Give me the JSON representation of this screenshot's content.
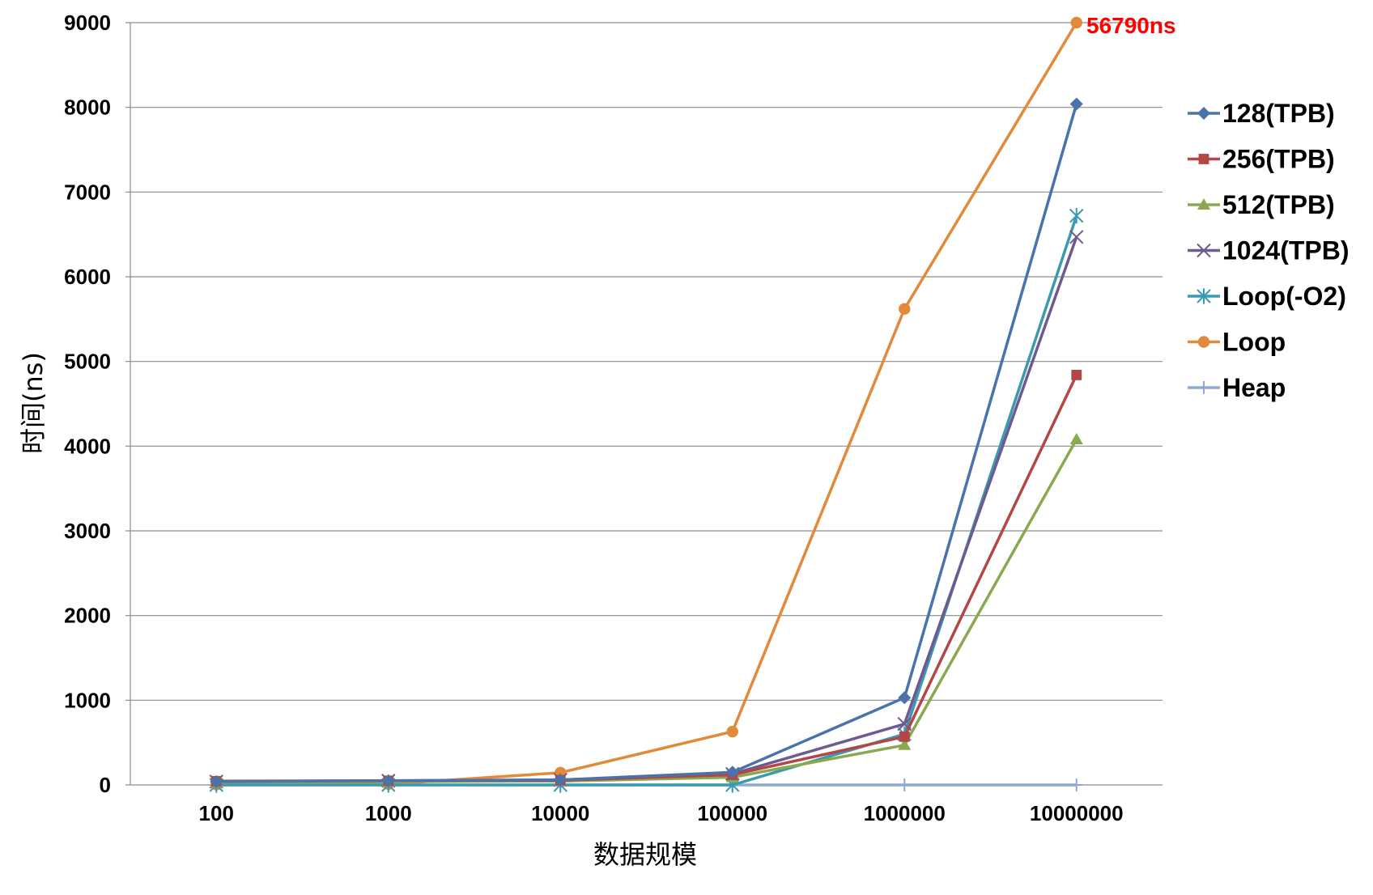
{
  "chart_data": {
    "type": "line",
    "title": "",
    "xlabel": "数据规模",
    "ylabel": "时间(ns)",
    "categories": [
      "100",
      "1000",
      "10000",
      "100000",
      "1000000",
      "10000000"
    ],
    "y_ticks": [
      "0",
      "1000",
      "2000",
      "3000",
      "4000",
      "5000",
      "6000",
      "7000",
      "8000",
      "9000"
    ],
    "ylim": [
      0,
      9000
    ],
    "grid": true,
    "legend_position": "right",
    "annotation": {
      "text": "56790ns",
      "color": "#ff0000"
    },
    "series": [
      {
        "name": "128(TPB)",
        "color": "#4a72ab",
        "marker": "diamond",
        "values": [
          40,
          50,
          60,
          150,
          1030,
          8040
        ]
      },
      {
        "name": "256(TPB)",
        "color": "#b24745",
        "marker": "square",
        "values": [
          45,
          50,
          55,
          120,
          570,
          4840
        ]
      },
      {
        "name": "512(TPB)",
        "color": "#8aa84f",
        "marker": "triangle",
        "values": [
          30,
          40,
          45,
          90,
          470,
          4080
        ]
      },
      {
        "name": "1024(TPB)",
        "color": "#6e5a90",
        "marker": "x",
        "values": [
          40,
          50,
          60,
          130,
          720,
          6470
        ]
      },
      {
        "name": "Loop(-O2)",
        "color": "#3a9bb0",
        "marker": "asterisk",
        "values": [
          0,
          0,
          0,
          0,
          600,
          6720
        ]
      },
      {
        "name": "Loop",
        "color": "#e08a3a",
        "marker": "circle",
        "values": [
          5,
          10,
          145,
          630,
          5620,
          9000
        ]
      },
      {
        "name": "Heap",
        "color": "#8fa9d0",
        "marker": "plus",
        "values": [
          0,
          0,
          0,
          0,
          0,
          0
        ]
      }
    ]
  }
}
